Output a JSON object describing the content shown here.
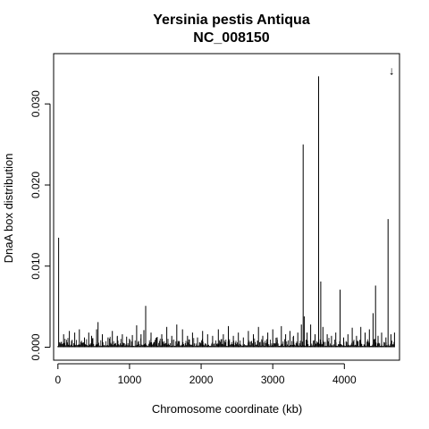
{
  "chart_data": {
    "type": "bar",
    "title": "Yersinia pestis Antiqua",
    "subtitle": "NC_008150",
    "xlabel": "Chromosome coordinate (kb)",
    "ylabel": "DnaA box distribution",
    "xlim": [
      -60,
      4770
    ],
    "ylim": [
      -0.0016,
      0.0362
    ],
    "x_ticks": [
      0,
      1000,
      2000,
      3000,
      4000
    ],
    "y_ticks": [
      0.0,
      0.01,
      0.02,
      0.03
    ],
    "y_tick_labels": [
      "0.000",
      "0.010",
      "0.020",
      "0.030"
    ],
    "grid": false,
    "marker": {
      "symbol": "↓",
      "x": 4660,
      "y": 0.0336,
      "color": "#c0142d"
    },
    "series": [
      {
        "x": [
          10,
          80,
          160,
          235,
          300,
          370,
          430,
          470,
          540,
          560,
          620,
          700,
          760,
          830,
          900,
          960,
          1040,
          1100,
          1160,
          1200,
          1225,
          1300,
          1380,
          1450,
          1520,
          1590,
          1660,
          1740,
          1810,
          1880,
          1950,
          2020,
          2090,
          2160,
          2240,
          2310,
          2380,
          2450,
          2520,
          2590,
          2660,
          2730,
          2800,
          2860,
          2930,
          3000,
          3060,
          3120,
          3180,
          3240,
          3290,
          3350,
          3400,
          3425,
          3440,
          3480,
          3530,
          3590,
          3640,
          3670,
          3700,
          3760,
          3820,
          3880,
          3940,
          3990,
          4050,
          4110,
          4170,
          4230,
          4290,
          4350,
          4400,
          4435,
          4470,
          4520,
          4580,
          4610,
          4650,
          4700
        ],
        "values": [
          0.0135,
          0.0016,
          0.002,
          0.0018,
          0.0022,
          0.0012,
          0.0018,
          0.0014,
          0.0022,
          0.0031,
          0.0016,
          0.0012,
          0.002,
          0.0014,
          0.0016,
          0.0013,
          0.0015,
          0.0027,
          0.0016,
          0.0021,
          0.0051,
          0.0018,
          0.0012,
          0.0016,
          0.0025,
          0.0014,
          0.0028,
          0.0022,
          0.0014,
          0.0018,
          0.0012,
          0.002,
          0.0016,
          0.0014,
          0.0022,
          0.0016,
          0.0026,
          0.0014,
          0.0018,
          0.0012,
          0.002,
          0.0016,
          0.0025,
          0.0014,
          0.0018,
          0.0022,
          0.0012,
          0.0026,
          0.0016,
          0.002,
          0.0014,
          0.0018,
          0.0028,
          0.025,
          0.0038,
          0.0018,
          0.0028,
          0.0016,
          0.0334,
          0.0081,
          0.0025,
          0.0016,
          0.0014,
          0.0018,
          0.0071,
          0.0012,
          0.0016,
          0.0024,
          0.0014,
          0.0025,
          0.0018,
          0.0022,
          0.0042,
          0.0076,
          0.0014,
          0.0018,
          0.0012,
          0.0158,
          0.0016,
          0.0018
        ],
        "color": "#000000"
      }
    ]
  }
}
